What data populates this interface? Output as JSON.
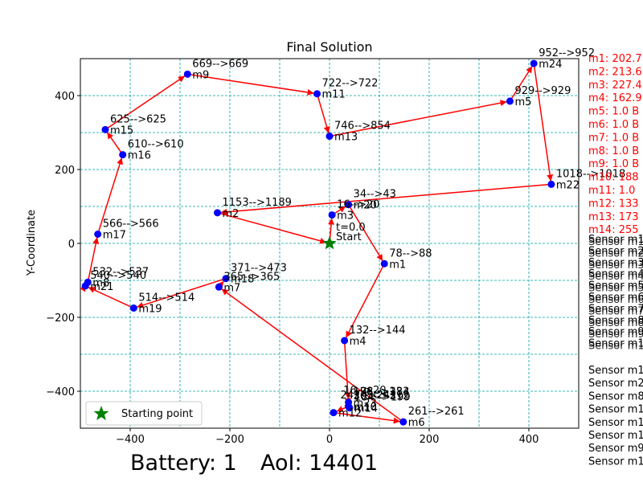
{
  "chart_data": {
    "type": "scatter",
    "title": "Final Solution",
    "xlabel": "",
    "ylabel": "Y-Coordinate",
    "xlim": [
      -500,
      500
    ],
    "ylim": [
      -500,
      500
    ],
    "x_ticks": [
      -400,
      -200,
      0,
      200,
      400
    ],
    "y_ticks": [
      -400,
      -200,
      0,
      200,
      400
    ],
    "grid": true,
    "legend": {
      "position": "lower-left",
      "entries": [
        "Starting point"
      ]
    },
    "start": {
      "x": 0,
      "y": 0,
      "label": "Start",
      "time_label": "t=0.0"
    },
    "points": [
      {
        "name": "m1",
        "x": 110,
        "y": -55,
        "label": "78-->88"
      },
      {
        "name": "m2",
        "x": -225,
        "y": 83,
        "label": "1153-->1189"
      },
      {
        "name": "m3",
        "x": 5,
        "y": 77,
        "label": "16-->20"
      },
      {
        "name": "m4",
        "x": 30,
        "y": -263,
        "label": "132-->144"
      },
      {
        "name": "m5",
        "x": 362,
        "y": 385,
        "label": "929-->929"
      },
      {
        "name": "m6",
        "x": 148,
        "y": -483,
        "label": "261-->261"
      },
      {
        "name": "m7",
        "x": -222,
        "y": -118,
        "label": "365-->365"
      },
      {
        "name": "m8",
        "x": -485,
        "y": -105,
        "label": "532-->537"
      },
      {
        "name": "m9",
        "x": -285,
        "y": 458,
        "label": "669-->669"
      },
      {
        "name": "m10",
        "x": 38,
        "y": -441,
        "label": ""
      },
      {
        "name": "m11",
        "x": -25,
        "y": 405,
        "label": "722-->722"
      },
      {
        "name": "m12",
        "x": 8,
        "y": -458,
        "label": ""
      },
      {
        "name": "m13",
        "x": 0,
        "y": 290,
        "label": "746-->854"
      },
      {
        "name": "m14",
        "x": 40,
        "y": -445,
        "label": "184-->199"
      },
      {
        "name": "m15",
        "x": -450,
        "y": 308,
        "label": "625-->625"
      },
      {
        "name": "m16",
        "x": -415,
        "y": 240,
        "label": "610-->610"
      },
      {
        "name": "m17",
        "x": -465,
        "y": 25,
        "label": "566-->566"
      },
      {
        "name": "m18",
        "x": -208,
        "y": -95,
        "label": "371-->473"
      },
      {
        "name": "m19",
        "x": -393,
        "y": -175,
        "label": "514-->514"
      },
      {
        "name": "m20",
        "x": 38,
        "y": 105,
        "label": "34-->43"
      },
      {
        "name": "m21",
        "x": -490,
        "y": -115,
        "label": "540-->540"
      },
      {
        "name": "m22",
        "x": 445,
        "y": 160,
        "label": "1018-->1018"
      },
      {
        "name": "m23",
        "x": 38,
        "y": -430,
        "label": "176-->184"
      },
      {
        "name": "m24",
        "x": 410,
        "y": 487,
        "label": "952-->952"
      }
    ],
    "extra_labels": [
      "16-->20",
      "242-->242",
      "198-->233",
      "305-->312"
    ],
    "route": [
      "start",
      "m3",
      "m20",
      "m1",
      "m4",
      "m23",
      "m14",
      "m10",
      "m12",
      "m6",
      "m7",
      "m18",
      "m19",
      "m21",
      "m8",
      "m17",
      "m16",
      "m15",
      "m9",
      "m11",
      "m13",
      "m5",
      "m24",
      "m22",
      "m2",
      "start"
    ],
    "colors": {
      "path": "#ff0000",
      "point": "#0000ff",
      "start": "#008000",
      "grid": "#00a0a0"
    }
  },
  "legend_label": "Starting point",
  "status": {
    "battery": "Battery: 1",
    "aoi": "AoI: 14401"
  },
  "red_list": [
    "m1: 202.7",
    "m2: 213.6",
    "m3: 227.4",
    "m4: 162.9",
    "m5: 1.0 B",
    "m6: 1.0 B",
    "m7: 1.0 B",
    "m8: 1.0 B",
    "m9: 1.0 B",
    "m10: 188",
    "m11: 1.0",
    "m12: 133",
    "m13: 173",
    "m14: 255"
  ],
  "black_list_overlap": [
    "Sensor m1",
    "Sensor m2",
    "Sensor m3",
    "Sensor m4",
    "Sensor m5",
    "Sensor m6",
    "Sensor m7",
    "Sensor m8",
    "Sensor m9",
    "Sensor m1"
  ],
  "black_list": [
    "Sensor m1",
    "Sensor m2",
    "Sensor m8",
    "Sensor m1",
    "Sensor m1",
    "Sensor m1",
    "Sensor m9",
    "Sensor m1"
  ]
}
